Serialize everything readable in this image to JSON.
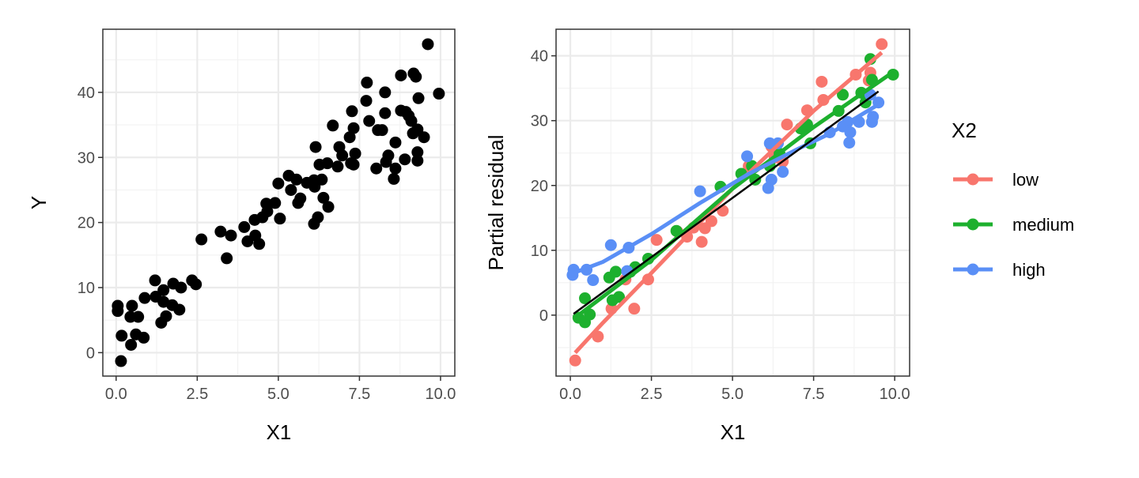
{
  "chart_data": [
    {
      "type": "scatter",
      "title": "",
      "xlabel": "X1",
      "ylabel": "Y",
      "xlim": [
        -0.41,
        10.44
      ],
      "ylim": [
        -3.6,
        49.7
      ],
      "xticks": [
        "0.0",
        "2.5",
        "5.0",
        "7.5",
        "10.0"
      ],
      "xtick_values": [
        0,
        2.5,
        5,
        7.5,
        10
      ],
      "yticks": [
        "0",
        "10",
        "20",
        "30",
        "40"
      ],
      "ytick_values": [
        0,
        10,
        20,
        30,
        40
      ],
      "grid": true,
      "point_color": "#000000",
      "points": [
        [
          9.61,
          47.4
        ],
        [
          8.78,
          42.6
        ],
        [
          9.17,
          42.9
        ],
        [
          9.24,
          42.4
        ],
        [
          7.73,
          41.5
        ],
        [
          8.29,
          40.0
        ],
        [
          9.95,
          39.8
        ],
        [
          9.32,
          39.1
        ],
        [
          7.71,
          38.7
        ],
        [
          7.27,
          37.1
        ],
        [
          8.29,
          36.8
        ],
        [
          8.78,
          37.2
        ],
        [
          8.93,
          37.0
        ],
        [
          9.02,
          36.4
        ],
        [
          9.1,
          35.6
        ],
        [
          7.8,
          35.6
        ],
        [
          6.68,
          34.9
        ],
        [
          7.32,
          34.5
        ],
        [
          8.07,
          34.2
        ],
        [
          8.2,
          34.2
        ],
        [
          9.29,
          34.3
        ],
        [
          9.15,
          33.7
        ],
        [
          9.49,
          33.1
        ],
        [
          7.2,
          33.1
        ],
        [
          8.61,
          32.3
        ],
        [
          6.15,
          31.6
        ],
        [
          6.88,
          31.6
        ],
        [
          7.37,
          30.6
        ],
        [
          6.97,
          30.3
        ],
        [
          9.29,
          30.8
        ],
        [
          8.39,
          30.3
        ],
        [
          8.9,
          29.7
        ],
        [
          9.29,
          29.5
        ],
        [
          8.32,
          29.3
        ],
        [
          6.27,
          28.9
        ],
        [
          6.51,
          29.1
        ],
        [
          6.83,
          28.6
        ],
        [
          7.24,
          29.1
        ],
        [
          7.32,
          28.9
        ],
        [
          8.02,
          28.3
        ],
        [
          8.61,
          28.3
        ],
        [
          8.56,
          26.7
        ],
        [
          5.32,
          27.2
        ],
        [
          5.56,
          26.6
        ],
        [
          5.88,
          26.1
        ],
        [
          6.1,
          26.5
        ],
        [
          6.34,
          26.6
        ],
        [
          6.12,
          25.5
        ],
        [
          5.0,
          26.0
        ],
        [
          5.39,
          25.0
        ],
        [
          5.68,
          23.7
        ],
        [
          5.61,
          23.0
        ],
        [
          6.39,
          23.8
        ],
        [
          6.54,
          22.4
        ],
        [
          4.9,
          23.0
        ],
        [
          4.63,
          22.9
        ],
        [
          4.66,
          21.7
        ],
        [
          4.51,
          20.8
        ],
        [
          4.27,
          20.4
        ],
        [
          5.05,
          20.6
        ],
        [
          6.1,
          19.8
        ],
        [
          6.22,
          20.8
        ],
        [
          3.95,
          19.3
        ],
        [
          4.05,
          17.1
        ],
        [
          4.29,
          18.0
        ],
        [
          4.41,
          16.7
        ],
        [
          2.63,
          17.4
        ],
        [
          3.22,
          18.6
        ],
        [
          3.54,
          18.0
        ],
        [
          3.41,
          14.5
        ],
        [
          1.2,
          11.1
        ],
        [
          1.46,
          9.6
        ],
        [
          1.76,
          10.6
        ],
        [
          2.0,
          10.0
        ],
        [
          2.34,
          11.1
        ],
        [
          2.46,
          10.5
        ],
        [
          0.88,
          8.4
        ],
        [
          1.22,
          8.6
        ],
        [
          1.46,
          7.8
        ],
        [
          1.73,
          7.3
        ],
        [
          1.95,
          6.6
        ],
        [
          0.05,
          7.2
        ],
        [
          0.05,
          6.4
        ],
        [
          0.49,
          7.2
        ],
        [
          0.44,
          5.5
        ],
        [
          0.68,
          5.5
        ],
        [
          1.54,
          5.6
        ],
        [
          1.39,
          4.6
        ],
        [
          0.17,
          2.6
        ],
        [
          0.61,
          2.8
        ],
        [
          0.85,
          2.3
        ],
        [
          0.46,
          1.2
        ],
        [
          0.15,
          -1.3
        ]
      ]
    },
    {
      "type": "scatter",
      "title": "",
      "xlabel": "X1",
      "ylabel": "Partial residual",
      "xlim": [
        -0.44,
        10.46
      ],
      "ylim": [
        -9.4,
        44.1
      ],
      "xticks": [
        "0.0",
        "2.5",
        "5.0",
        "7.5",
        "10.0"
      ],
      "xtick_values": [
        0,
        2.5,
        5,
        7.5,
        10
      ],
      "yticks": [
        "0",
        "10",
        "20",
        "30",
        "40"
      ],
      "ytick_values": [
        0,
        10,
        20,
        30,
        40
      ],
      "grid": true,
      "legend": {
        "title": "X2",
        "placement": "right"
      },
      "overall_fit": {
        "color": "#000000",
        "points": [
          [
            0.1,
            0.2
          ],
          [
            9.5,
            34.5
          ]
        ]
      },
      "series": [
        {
          "name": "low",
          "color": "#F8766D",
          "points": [
            [
              0.15,
              -7.0
            ],
            [
              0.85,
              -3.3
            ],
            [
              1.27,
              1.0
            ],
            [
              1.7,
              5.5
            ],
            [
              1.97,
              1.0
            ],
            [
              2.4,
              5.5
            ],
            [
              2.66,
              11.6
            ],
            [
              3.3,
              12.9
            ],
            [
              3.6,
              12.1
            ],
            [
              3.8,
              13.5
            ],
            [
              4.05,
              11.3
            ],
            [
              4.15,
              13.4
            ],
            [
              4.35,
              14.5
            ],
            [
              4.7,
              16.1
            ],
            [
              5.35,
              21.8
            ],
            [
              5.5,
              23.0
            ],
            [
              6.2,
              26.0
            ],
            [
              6.3,
              24.3
            ],
            [
              6.55,
              23.7
            ],
            [
              6.68,
              29.4
            ],
            [
              7.3,
              31.6
            ],
            [
              7.75,
              36.0
            ],
            [
              7.8,
              33.2
            ],
            [
              8.8,
              37.1
            ],
            [
              9.25,
              37.4
            ],
            [
              9.2,
              36.2
            ],
            [
              9.6,
              41.8
            ]
          ],
          "smooth": [
            [
              0.15,
              -5.8
            ],
            [
              1,
              -1.2
            ],
            [
              2.5,
              6.5
            ],
            [
              5,
              19.5
            ],
            [
              7.5,
              31.5
            ],
            [
              9.6,
              40.5
            ]
          ]
        },
        {
          "name": "medium",
          "color": "#1DB02E",
          "points": [
            [
              0.25,
              -0.4
            ],
            [
              0.45,
              -1.1
            ],
            [
              0.45,
              2.6
            ],
            [
              0.6,
              0.1
            ],
            [
              1.2,
              5.8
            ],
            [
              1.4,
              6.7
            ],
            [
              1.3,
              2.3
            ],
            [
              1.5,
              2.8
            ],
            [
              1.85,
              6.7
            ],
            [
              2.0,
              7.4
            ],
            [
              2.4,
              8.7
            ],
            [
              3.27,
              13.0
            ],
            [
              4.63,
              19.8
            ],
            [
              5.27,
              21.8
            ],
            [
              5.6,
              23.0
            ],
            [
              5.7,
              20.9
            ],
            [
              6.15,
              23.0
            ],
            [
              6.45,
              24.9
            ],
            [
              7.1,
              28.8
            ],
            [
              7.3,
              29.4
            ],
            [
              7.4,
              26.5
            ],
            [
              8.27,
              31.5
            ],
            [
              8.4,
              34.0
            ],
            [
              8.97,
              34.3
            ],
            [
              9.1,
              32.8
            ],
            [
              9.25,
              39.5
            ],
            [
              9.3,
              36.3
            ],
            [
              9.95,
              37.1
            ]
          ],
          "smooth": [
            [
              0.2,
              -0.2
            ],
            [
              2.5,
              8.5
            ],
            [
              5,
              19.5
            ],
            [
              7.5,
              29
            ],
            [
              9.95,
              37.5
            ]
          ]
        },
        {
          "name": "high",
          "color": "#5A8FF6",
          "points": [
            [
              0.07,
              6.2
            ],
            [
              0.1,
              7.0
            ],
            [
              0.5,
              7.0
            ],
            [
              0.7,
              5.4
            ],
            [
              1.25,
              10.8
            ],
            [
              1.8,
              10.4
            ],
            [
              1.75,
              6.8
            ],
            [
              4.0,
              19.1
            ],
            [
              5.45,
              24.5
            ],
            [
              6.15,
              26.5
            ],
            [
              6.4,
              26.5
            ],
            [
              6.55,
              22.1
            ],
            [
              6.2,
              20.9
            ],
            [
              6.1,
              19.6
            ],
            [
              8.0,
              28.2
            ],
            [
              8.4,
              29.1
            ],
            [
              8.6,
              26.6
            ],
            [
              8.63,
              28.2
            ],
            [
              8.9,
              29.8
            ],
            [
              9.25,
              34.0
            ],
            [
              9.5,
              32.8
            ],
            [
              9.3,
              29.8
            ],
            [
              9.33,
              30.6
            ],
            [
              8.55,
              29.8
            ]
          ],
          "smooth": [
            [
              0.1,
              6.5
            ],
            [
              1,
              8.2
            ],
            [
              2.5,
              12.5
            ],
            [
              4,
              17.3
            ],
            [
              5.5,
              21.8
            ],
            [
              7,
              25.6
            ],
            [
              8,
              28
            ],
            [
              9.5,
              32.5
            ]
          ]
        }
      ]
    }
  ]
}
